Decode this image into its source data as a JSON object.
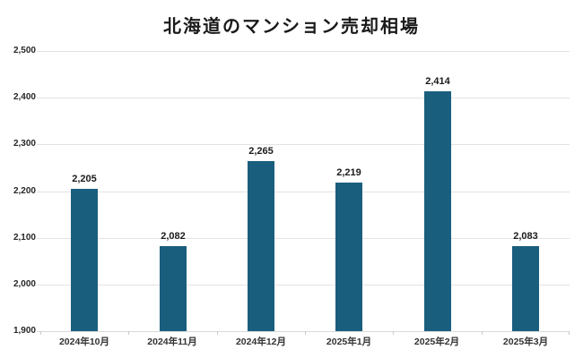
{
  "chart_data": {
    "type": "bar",
    "title": "北海道のマンション売却相場",
    "categories": [
      "2024年10月",
      "2024年11月",
      "2024年12月",
      "2025年1月",
      "2025年2月",
      "2025年3月"
    ],
    "values": [
      2205,
      2082,
      2265,
      2219,
      2414,
      2083
    ],
    "value_labels": [
      "2,205",
      "2,082",
      "2,265",
      "2,219",
      "2,414",
      "2,083"
    ],
    "xlabel": "",
    "ylabel": "",
    "ylim": [
      1900,
      2500
    ],
    "ytick_values": [
      1900,
      2000,
      2100,
      2200,
      2300,
      2400,
      2500
    ],
    "ytick_labels": [
      "1,900",
      "2,000",
      "2,100",
      "2,200",
      "2,300",
      "2,400",
      "2,500"
    ],
    "grid": "horizontal",
    "legend": "none"
  },
  "colors": {
    "bar": "#1A5E7E",
    "gridline": "#E3E3E3",
    "axis_line": "#D9D9D9",
    "tick": "#C9C9C9",
    "title_text": "#1A1A1A",
    "axis_text": "#262626",
    "value_text": "#1A1A1A",
    "background": "#FFFFFF"
  }
}
